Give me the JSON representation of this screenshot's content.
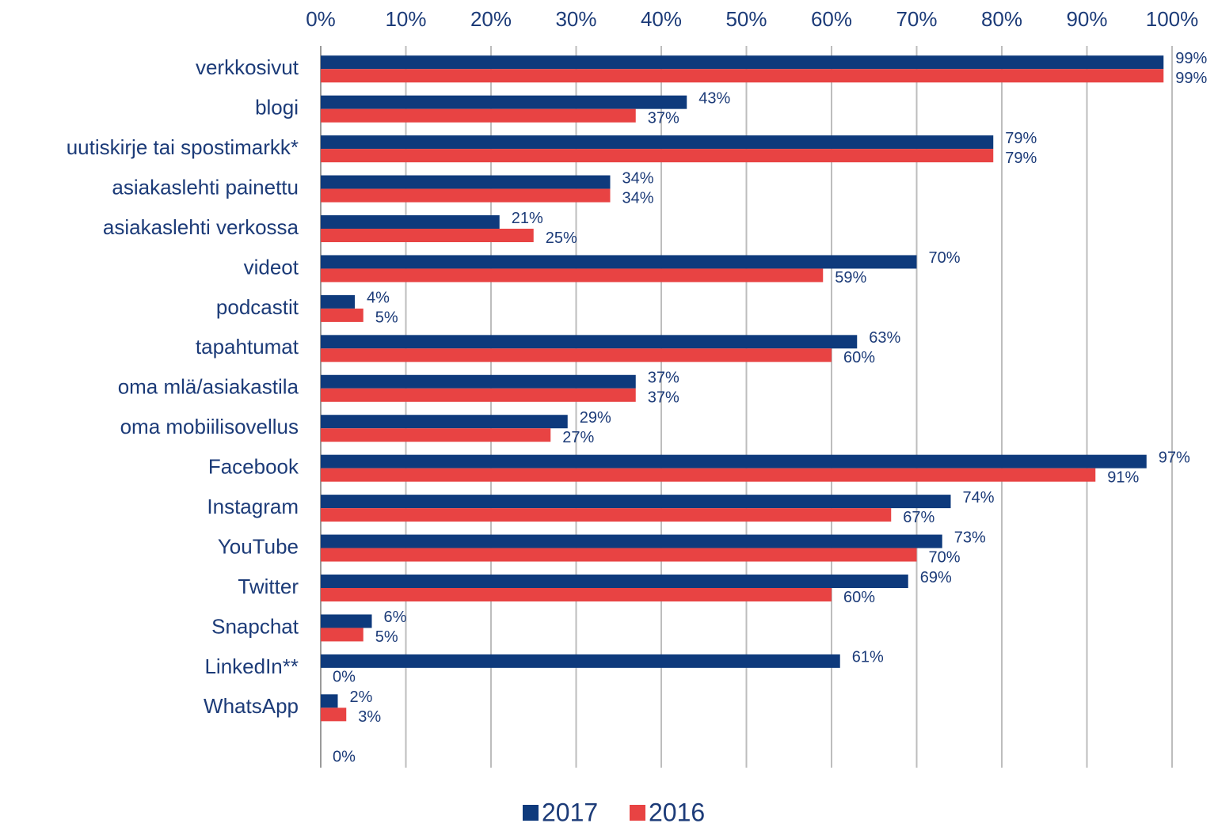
{
  "chart_data": {
    "type": "bar",
    "orientation": "horizontal",
    "categories": [
      "verkkosivut",
      "blogi",
      "uutiskirje tai spostimarkk*",
      "asiakaslehti painettu",
      "asiakaslehti verkossa",
      "videot",
      "podcastit",
      "tapahtumat",
      "oma mlä/asiakastila",
      "oma mobiilisovellus",
      "Facebook",
      "Instagram",
      "YouTube",
      "Twitter",
      "Snapchat",
      "LinkedIn**",
      "WhatsApp",
      null
    ],
    "series": [
      {
        "name": "2017",
        "color": "#0e3a7c",
        "values": [
          99,
          43,
          79,
          34,
          21,
          70,
          4,
          63,
          37,
          29,
          97,
          74,
          73,
          69,
          6,
          61,
          2,
          null
        ],
        "value_labels": [
          "99%",
          "43%",
          "79%",
          "34%",
          "21%",
          "70%",
          "4%",
          "63%",
          "37%",
          "29%",
          "97%",
          "74%",
          "73%",
          "69%",
          "6%",
          "61%",
          "2%",
          null
        ]
      },
      {
        "name": "2016",
        "color": "#e84343",
        "values": [
          99,
          37,
          79,
          34,
          25,
          59,
          5,
          60,
          37,
          27,
          91,
          67,
          70,
          60,
          5,
          0,
          3,
          0
        ],
        "value_labels": [
          "99%",
          "37%",
          "79%",
          "34%",
          "25%",
          "59%",
          "5%",
          "60%",
          "37%",
          "27%",
          "91%",
          "67%",
          "70%",
          "60%",
          "5%",
          "0%",
          "3%",
          "0%"
        ]
      }
    ],
    "xlim": [
      0,
      100
    ],
    "xticks": [
      {
        "value": 0,
        "label": "0%"
      },
      {
        "value": 10,
        "label": "10%"
      },
      {
        "value": 20,
        "label": "20%"
      },
      {
        "value": 30,
        "label": "30%"
      },
      {
        "value": 40,
        "label": "40%"
      },
      {
        "value": 50,
        "label": "50%"
      },
      {
        "value": 60,
        "label": "60%"
      },
      {
        "value": 70,
        "label": "70%"
      },
      {
        "value": 80,
        "label": "80%"
      },
      {
        "value": 90,
        "label": "90%"
      },
      {
        "value": 100,
        "label": "100%"
      }
    ],
    "grid": true,
    "legend": "bottom"
  }
}
